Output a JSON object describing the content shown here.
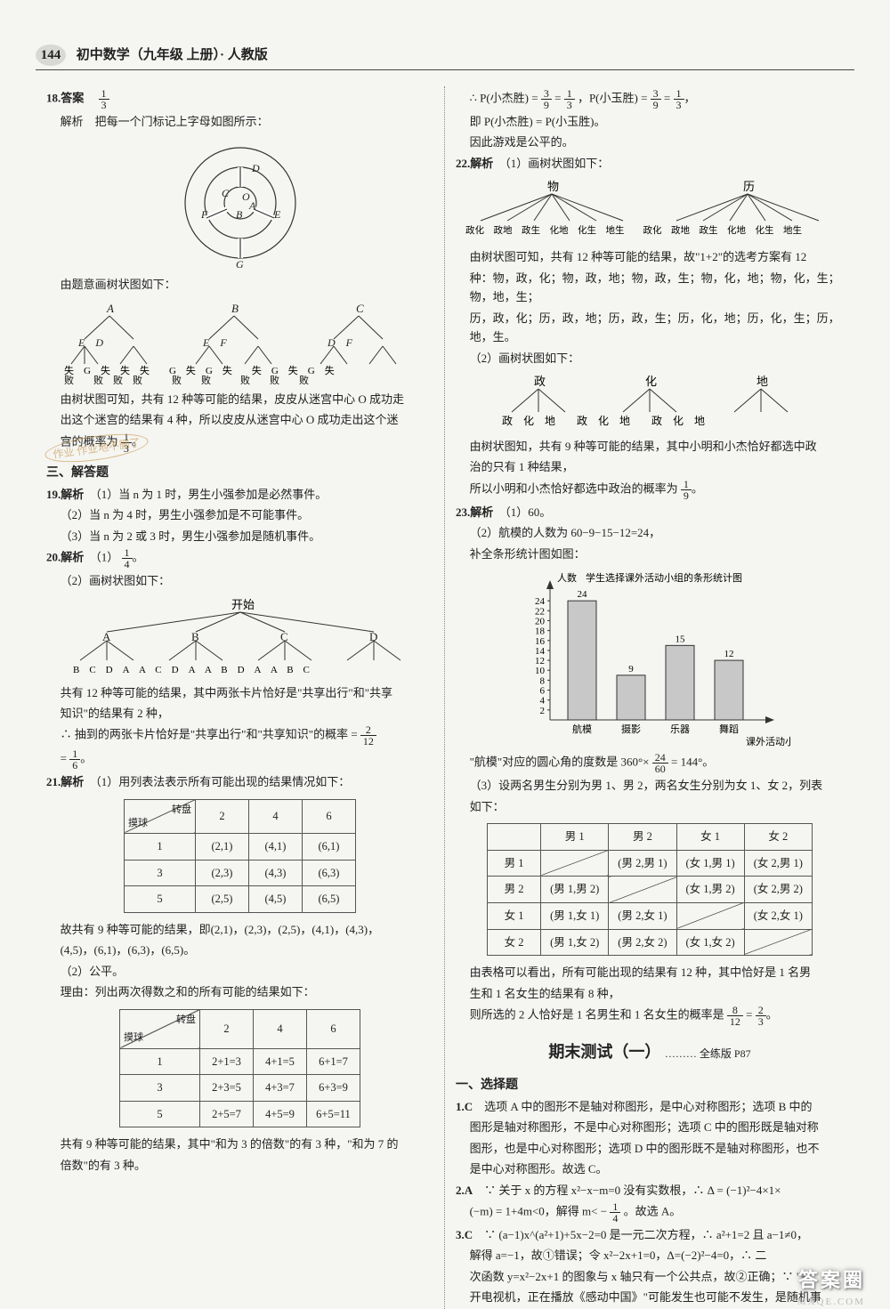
{
  "page_number": "144",
  "header_title": "初中数学（九年级 上册）· 人教版",
  "watermark": "答案圈",
  "watermark_sub": "MXQE.COM",
  "stamp_text": "作业 作业地不删了",
  "q18": {
    "label": "18.答案",
    "answer_num": "1",
    "answer_den": "3",
    "line1": "解析　把每一个门标记上字母如图所示：",
    "circle_labels": [
      "D",
      "C",
      "O",
      "A",
      "F",
      "B",
      "E",
      "G"
    ],
    "line2": "由题意画树状图如下：",
    "tree_roots": [
      "A",
      "B",
      "C"
    ],
    "tree_mid_pairs": [
      "E　D",
      "E　F",
      "D　F"
    ],
    "tree_leaves": "失　G　失　失　失　　G　失　G　失　　失　G　失　G　失",
    "tree_leaves2": "败　　败　败　败　　　败　　败　　　败　　败　　败",
    "line3_a": "由树状图可知，共有 12 种等可能的结果，皮皮从迷宫中心 O 成功走",
    "line3_b": "出这个迷宫的结果有 4 种，所以皮皮从迷宫中心 O 成功走出这个迷",
    "line4": "宫的概率为 ",
    "prob_num": "1",
    "prob_den": "3"
  },
  "sec3": "三、解答题",
  "q19": {
    "label": "19.解析",
    "l1": "（1）当 n 为 1 时，男生小强参加是必然事件。",
    "l2": "（2）当 n 为 4 时，男生小强参加是不可能事件。",
    "l3": "（3）当 n 为 2 或 3 时，男生小强参加是随机事件。"
  },
  "q20": {
    "label": "20.解析",
    "p1_pre": "（1）",
    "p1_num": "1",
    "p1_den": "4",
    "p2": "（2）画树状图如下：",
    "tree_top": "开始",
    "tree_l2": [
      "A",
      "B",
      "C",
      "D"
    ],
    "tree_l3": "B　C　D　A　A　C　D　A　A　B　D　A　A　B　C",
    "l3": "共有 12 种等可能的结果，其中两张卡片恰好是\"共享出行\"和\"共享",
    "l3b": "知识\"的结果有 2 种，",
    "l4_pre": "∴ 抽到的两张卡片恰好是\"共享出行\"和\"共享知识\"的概率 = ",
    "l4_num": "2",
    "l4_den": "12",
    "l5_num": "1",
    "l5_den": "6"
  },
  "q21": {
    "label": "21.解析",
    "p1": "（1）用列表法表示所有可能出现的结果情况如下：",
    "table1": {
      "corner_top": "转盘",
      "corner_bot": "摸球",
      "cols": [
        "2",
        "4",
        "6"
      ],
      "rows": [
        {
          "h": "1",
          "c": [
            "(2,1)",
            "(4,1)",
            "(6,1)"
          ]
        },
        {
          "h": "3",
          "c": [
            "(2,3)",
            "(4,3)",
            "(6,3)"
          ]
        },
        {
          "h": "5",
          "c": [
            "(2,5)",
            "(4,5)",
            "(6,5)"
          ]
        }
      ]
    },
    "l2a": "故共有 9 种等可能的结果，即(2,1)，(2,3)，(2,5)，(4,1)，(4,3)，",
    "l2b": "(4,5)，(6,1)，(6,3)，(6,5)。",
    "l3": "（2）公平。",
    "l4": "理由：列出两次得数之和的所有可能的结果如下：",
    "table2": {
      "corner_top": "转盘",
      "corner_bot": "摸球",
      "cols": [
        "2",
        "4",
        "6"
      ],
      "rows": [
        {
          "h": "1",
          "c": [
            "2+1=3",
            "4+1=5",
            "6+1=7"
          ]
        },
        {
          "h": "3",
          "c": [
            "2+3=5",
            "4+3=7",
            "6+3=9"
          ]
        },
        {
          "h": "5",
          "c": [
            "2+5=7",
            "4+5=9",
            "6+5=11"
          ]
        }
      ]
    },
    "l5a": "共有 9 种等可能的结果，其中\"和为 3 的倍数\"的有 3 种，\"和为 7 的",
    "l5b": "倍数\"的有 3 种。"
  },
  "right": {
    "l1_pre": "∴ P(小杰胜) = ",
    "f1n": "3",
    "f1d": "9",
    "eq1": " = ",
    "f2n": "1",
    "f2d": "3",
    "l1_mid": "，P(小玉胜) = ",
    "f3n": "3",
    "f3d": "9",
    "f4n": "1",
    "f4d": "3",
    "l2": "即 P(小杰胜) = P(小玉胜)。",
    "l3": "因此游戏是公平的。",
    "q22_label": "22.解析",
    "q22_p1": "（1）画树状图如下：",
    "q22_roots": [
      "物",
      "历"
    ],
    "q22_leaves": "政化　政地　政生　化地　化生　地生　　政化　政地　政生　化地　化生　地生",
    "q22_t1": "由树状图可知，共有 12 种等可能的结果，故\"1+2\"的选考方案有 12",
    "q22_t2": "种：物，政，化；物，政，地；物，政，生；物，化，地；物，化，生；物，地，生；",
    "q22_t3": "历，政，化；历，政，地；历，政，生；历，化，地；历，化，生；历，地，生。",
    "q22_p2": "（2）画树状图如下：",
    "q22_roots2": [
      "政",
      "化",
      "地"
    ],
    "q22_leaves2": "政　化　地　　政　化　地　　政　化　地",
    "q22_t4": "由树状图知，共有 9 种等可能的结果，其中小明和小杰恰好都选中政",
    "q22_t5": "治的只有 1 种结果，",
    "q22_t6_pre": "所以小明和小杰恰好都选中政治的概率为 ",
    "q22_fn": "1",
    "q22_fd": "9",
    "q23_label": "23.解析",
    "q23_p1": "（1）60。",
    "q23_p2": "（2）航模的人数为 60−9−15−12=24，",
    "q23_p3": "补全条形统计图如图：",
    "bar": {
      "title": "学生选择课外活动小组的条形统计图",
      "ylabel": "人数",
      "xlabel": "课外活动小组",
      "yticks": [
        0,
        2,
        4,
        6,
        8,
        10,
        12,
        14,
        16,
        18,
        20,
        22,
        24
      ],
      "yticks_show": [
        "2",
        "4",
        "6",
        "8",
        "10",
        "12",
        "14",
        "16",
        "18",
        "20",
        "22",
        "24"
      ],
      "ymax": 26,
      "cats": [
        "航模",
        "摄影",
        "乐器",
        "舞蹈"
      ],
      "vals": [
        24,
        9,
        15,
        12
      ],
      "bar_fill": "#c8c8c8",
      "bar_stroke": "#333",
      "font_size": 11
    },
    "q23_t1_pre": "\"航模\"对应的圆心角的度数是 360°× ",
    "q23_t1_n": "24",
    "q23_t1_d": "60",
    "q23_t1_post": " = 144°。",
    "q23_p4a": "（3）设两名男生分别为男 1、男 2，两名女生分别为女 1、女 2，列表",
    "q23_p4b": "如下：",
    "table3": {
      "cols": [
        "男 1",
        "男 2",
        "女 1",
        "女 2"
      ],
      "rows": [
        {
          "h": "男 1",
          "c": [
            "—",
            "(男 2,男 1)",
            "(女 1,男 1)",
            "(女 2,男 1)"
          ]
        },
        {
          "h": "男 2",
          "c": [
            "(男 1,男 2)",
            "—",
            "(女 1,男 2)",
            "(女 2,男 2)"
          ]
        },
        {
          "h": "女 1",
          "c": [
            "(男 1,女 1)",
            "(男 2,女 1)",
            "—",
            "(女 2,女 1)"
          ]
        },
        {
          "h": "女 2",
          "c": [
            "(男 1,女 2)",
            "(男 2,女 2)",
            "(女 1,女 2)",
            "—"
          ]
        }
      ]
    },
    "q23_t2a": "由表格可以看出，所有可能出现的结果有 12 种，其中恰好是 1 名男",
    "q23_t2b": "生和 1 名女生的结果有 8 种，",
    "q23_t3_pre": "则所选的 2 人恰好是 1 名男生和 1 名女生的概率是 ",
    "q23_f1n": "8",
    "q23_f1d": "12",
    "q23_f2n": "2",
    "q23_f2d": "3",
    "test_title": "期末测试（一）",
    "test_sub": "……… 全练版 P87",
    "mc_heading": "一、选择题",
    "q1_label": "1.C",
    "q1_a": "选项 A 中的图形不是轴对称图形，是中心对称图形；选项 B 中的",
    "q1_b": "图形是轴对称图形，不是中心对称图形；选项 C 中的图形既是轴对称",
    "q1_c": "图形，也是中心对称图形；选项 D 中的图形既不是轴对称图形，也不",
    "q1_d": "是中心对称图形。故选 C。",
    "q2_label": "2.A",
    "q2_a": "∵ 关于 x 的方程 x²−x−m=0 没有实数根，∴ Δ = (−1)²−4×1×",
    "q2_b_pre": "(−m) = 1+4m<0，解得 m< − ",
    "q2_fn": "1",
    "q2_fd": "4",
    "q2_b_post": "。故选 A。",
    "q3_label": "3.C",
    "q3_a": "∵ (a−1)x^(a²+1)+5x−2=0 是一元二次方程，∴ a²+1=2 且 a−1≠0，",
    "q3_b": "解得 a=−1，故①错误；令 x²−2x+1=0，Δ=(−2)²−4=0，∴ 二",
    "q3_c": "次函数 y=x²−2x+1 的图象与 x 轴只有一个公共点，故②正确；∵ \"打",
    "q3_d": "开电视机，正在播放《感动中国》\"可能发生也可能不发生，是随机事"
  }
}
